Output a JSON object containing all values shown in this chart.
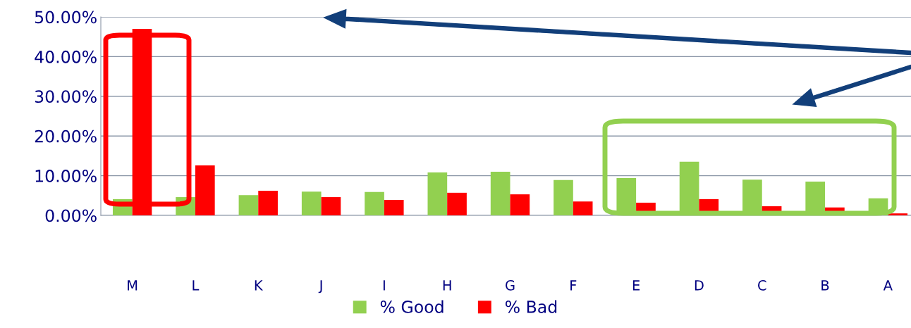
{
  "chart_data": {
    "type": "bar",
    "categories": [
      "M",
      "L",
      "K",
      "J",
      "I",
      "H",
      "G",
      "F",
      "E",
      "D",
      "C",
      "B",
      "A"
    ],
    "series": [
      {
        "name": "% Good",
        "color": "#92d050",
        "values": [
          4.1,
          4.6,
          5.1,
          6.0,
          5.9,
          10.8,
          11.0,
          8.9,
          9.4,
          13.5,
          9.0,
          8.5,
          4.3
        ]
      },
      {
        "name": "% Bad",
        "color": "#ff0000",
        "values": [
          47.0,
          12.6,
          6.2,
          4.6,
          3.9,
          5.7,
          5.3,
          3.5,
          3.2,
          4.1,
          2.3,
          2.0,
          0.5
        ]
      }
    ],
    "ylim": [
      0,
      50
    ],
    "yticks": [
      {
        "value": 0,
        "label": "0.00%"
      },
      {
        "value": 10,
        "label": "10.00%"
      },
      {
        "value": 20,
        "label": "20.00%"
      },
      {
        "value": 30,
        "label": "30.00%"
      },
      {
        "value": 40,
        "label": "40.00%"
      },
      {
        "value": 50,
        "label": "50.00%"
      }
    ],
    "grid": "y",
    "legend": "bottom"
  }
}
